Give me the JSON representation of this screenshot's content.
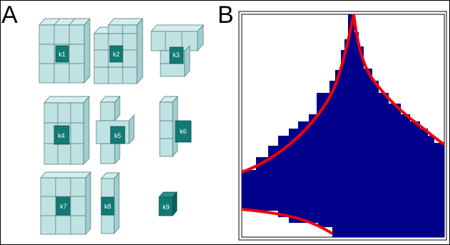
{
  "panels": {
    "a_label": "A",
    "b_label": "B"
  },
  "kernels": [
    {
      "label": "k1"
    },
    {
      "label": "k2"
    },
    {
      "label": "k3"
    },
    {
      "label": "k4"
    },
    {
      "label": "k5"
    },
    {
      "label": "k6"
    },
    {
      "label": "k7"
    },
    {
      "label": "k8"
    },
    {
      "label": "k9"
    }
  ],
  "colors": {
    "cube_face": "#bfe3e3",
    "cube_top": "#d3eeee",
    "cube_side": "#9fcfcf",
    "cube_edge": "#4f6f6f",
    "center_cube": "#127a74",
    "histogram": "#00008b",
    "curve": "#ee0000"
  }
}
